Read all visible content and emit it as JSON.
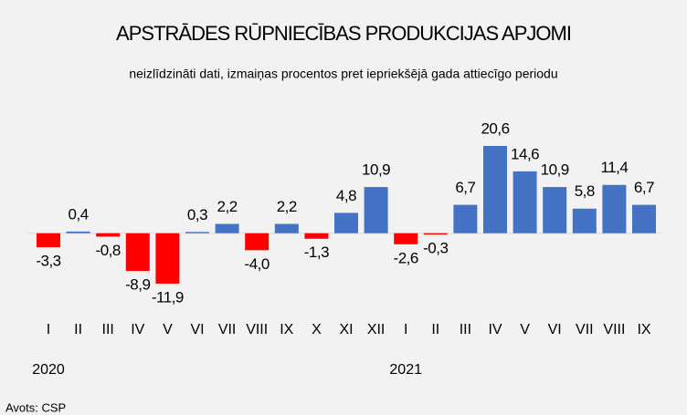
{
  "chart_data": {
    "type": "bar",
    "title": "APSTRĀDES RŪPNIECĪBAS PRODUKCIJAS APJOMI",
    "subtitle": "neizlīdzināti dati, izmaiņas procentos pret iepriekšējā gada attiecīgo periodu",
    "categories": [
      "I",
      "II",
      "III",
      "IV",
      "V",
      "VI",
      "VII",
      "VIII",
      "IX",
      "X",
      "XI",
      "XII",
      "I",
      "II",
      "III",
      "IV",
      "V",
      "VI",
      "VII",
      "VIII",
      "IX"
    ],
    "years": [
      "2020",
      null,
      null,
      null,
      null,
      null,
      null,
      null,
      null,
      null,
      null,
      null,
      "2021",
      null,
      null,
      null,
      null,
      null,
      null,
      null,
      null
    ],
    "values": [
      -3.3,
      0.4,
      -0.8,
      -8.9,
      -11.9,
      0.3,
      2.2,
      -4.0,
      2.2,
      -1.3,
      4.8,
      10.9,
      -2.6,
      -0.3,
      6.7,
      20.6,
      14.6,
      10.9,
      5.8,
      11.4,
      6.7
    ],
    "value_labels": [
      "-3,3",
      "0,4",
      "-0,8",
      "-8,9",
      "-11,9",
      "0,3",
      "2,2",
      "-4,0",
      "2,2",
      "-1,3",
      "4,8",
      "10,9",
      "-2,6",
      "-0,3",
      "6,7",
      "20,6",
      "14,6",
      "10,9",
      "5,8",
      "11,4",
      "6,7"
    ],
    "color": "#4472c4",
    "negative_color": "#ff0000",
    "source": "Avots: CSP"
  }
}
